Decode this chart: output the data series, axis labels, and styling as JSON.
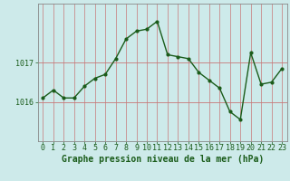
{
  "x": [
    0,
    1,
    2,
    3,
    4,
    5,
    6,
    7,
    8,
    9,
    10,
    11,
    12,
    13,
    14,
    15,
    16,
    17,
    18,
    19,
    20,
    21,
    22,
    23
  ],
  "y": [
    1016.1,
    1016.3,
    1016.1,
    1016.1,
    1016.4,
    1016.6,
    1016.7,
    1017.1,
    1017.6,
    1017.8,
    1017.85,
    1018.05,
    1017.2,
    1017.15,
    1017.1,
    1016.75,
    1016.55,
    1016.35,
    1015.75,
    1015.55,
    1017.25,
    1016.45,
    1016.5,
    1016.85
  ],
  "line_color": "#1a5c1a",
  "marker": "o",
  "markersize": 2.0,
  "linewidth": 1.0,
  "bg_color": "#cdeaea",
  "grid_color": "#c87878",
  "yticks": [
    1016,
    1017
  ],
  "ylim": [
    1015.0,
    1018.5
  ],
  "xlim": [
    -0.5,
    23.5
  ],
  "xlabel": "Graphe pression niveau de la mer (hPa)",
  "xlabel_fontsize": 7.0,
  "tick_fontsize": 6.0,
  "tick_color": "#1a5c1a",
  "label_color": "#1a5c1a",
  "spine_color": "#888888"
}
